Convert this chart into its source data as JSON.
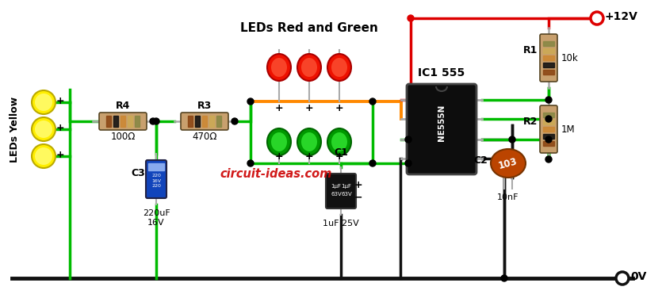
{
  "bg_color": "#ffffff",
  "wire_green": "#00bb00",
  "wire_red": "#dd0000",
  "wire_black": "#111111",
  "wire_orange": "#ff8800",
  "text_color": "#000000",
  "watermark": "circuit-ideas.com",
  "watermark_color": "#cc0000",
  "R4_label": "R4",
  "R4_val": "100Ω",
  "R3_label": "R3",
  "R3_val": "470Ω",
  "R1_label": "R1",
  "R1_val": "10k",
  "R2_label": "R2",
  "R2_val": "1M",
  "C3_label": "C3",
  "C3_val": "220uF\n16V",
  "C1_label": "C1",
  "C1_val": "1uF 25V",
  "C2_label": "C2",
  "C2_val": "10nF",
  "IC_label": "IC1 555",
  "led_label": "LEDs Red and Green",
  "yellow_label": "LEDs Yellow",
  "vcc": "+12V",
  "gnd": "0V"
}
